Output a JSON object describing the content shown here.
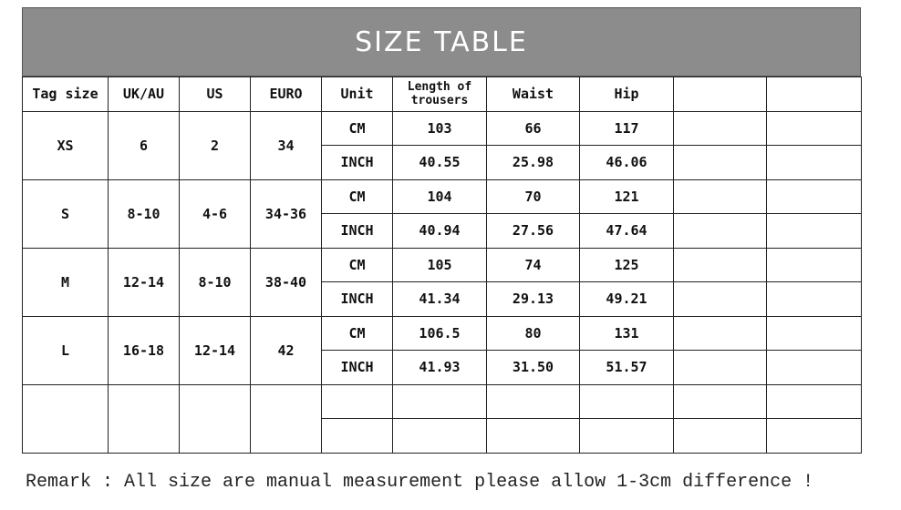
{
  "title": "SIZE TABLE",
  "headers": [
    "Tag size",
    "UK/AU",
    "US",
    "EURO",
    "Unit",
    "Length of trousers",
    "Waist",
    "Hip",
    "",
    ""
  ],
  "rows": [
    {
      "tag": "XS",
      "uk": "6",
      "us": "2",
      "euro": "34",
      "cm": {
        "unit": "CM",
        "length": "103",
        "waist": "66",
        "hip": "117"
      },
      "inch": {
        "unit": "INCH",
        "length": "40.55",
        "waist": "25.98",
        "hip": "46.06"
      }
    },
    {
      "tag": "S",
      "uk": "8-10",
      "us": "4-6",
      "euro": "34-36",
      "cm": {
        "unit": "CM",
        "length": "104",
        "waist": "70",
        "hip": "121"
      },
      "inch": {
        "unit": "INCH",
        "length": "40.94",
        "waist": "27.56",
        "hip": "47.64"
      }
    },
    {
      "tag": "M",
      "uk": "12-14",
      "us": "8-10",
      "euro": "38-40",
      "cm": {
        "unit": "CM",
        "length": "105",
        "waist": "74",
        "hip": "125"
      },
      "inch": {
        "unit": "INCH",
        "length": "41.34",
        "waist": "29.13",
        "hip": "49.21"
      }
    },
    {
      "tag": "L",
      "uk": "16-18",
      "us": "12-14",
      "euro": "42",
      "cm": {
        "unit": "CM",
        "length": "106.5",
        "waist": "80",
        "hip": "131"
      },
      "inch": {
        "unit": "INCH",
        "length": "41.93",
        "waist": "31.50",
        "hip": "51.57"
      }
    }
  ],
  "remark": "Remark : All size are manual measurement please allow 1-3cm difference !"
}
